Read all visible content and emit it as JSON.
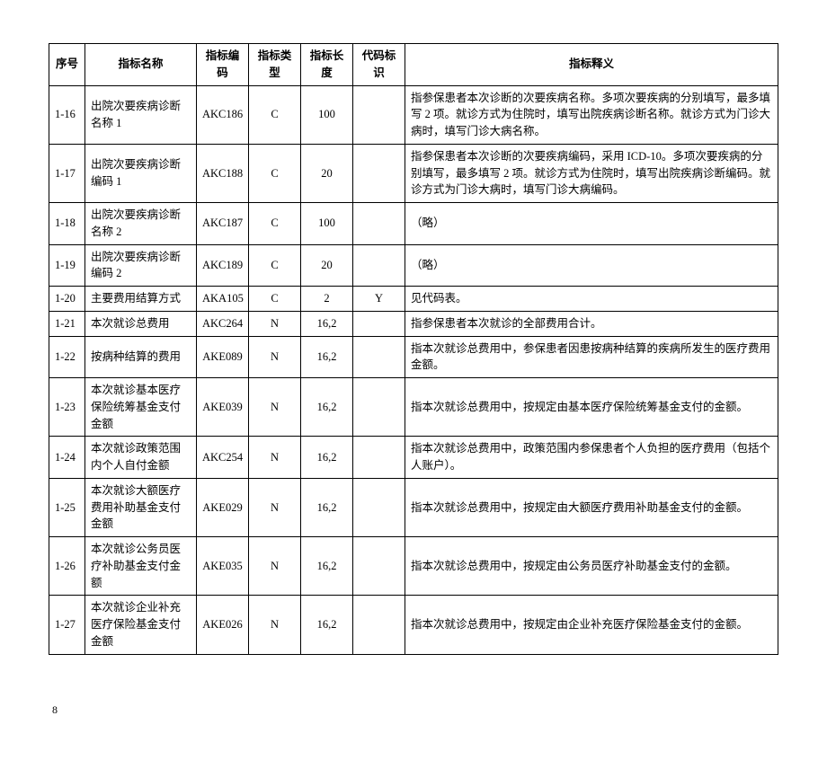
{
  "table": {
    "columns": [
      "序号",
      "指标名称",
      "指标编码",
      "指标类型",
      "指标长度",
      "代码标识",
      "指标释义"
    ],
    "rows": [
      {
        "seq": "1-16",
        "name": "出院次要疾病诊断名称 1",
        "code": "AKC186",
        "type": "C",
        "len": "100",
        "flag": "",
        "desc": "指参保患者本次诊断的次要疾病名称。多项次要疾病的分别填写，最多填写 2 项。就诊方式为住院时，填写出院疾病诊断名称。就诊方式为门诊大病时，填写门诊大病名称。"
      },
      {
        "seq": "1-17",
        "name": "出院次要疾病诊断编码 1",
        "code": "AKC188",
        "type": "C",
        "len": "20",
        "flag": "",
        "desc": "指参保患者本次诊断的次要疾病编码，采用 ICD-10。多项次要疾病的分别填写，最多填写 2 项。就诊方式为住院时，填写出院疾病诊断编码。就诊方式为门诊大病时，填写门诊大病编码。"
      },
      {
        "seq": "1-18",
        "name": "出院次要疾病诊断名称 2",
        "code": "AKC187",
        "type": "C",
        "len": "100",
        "flag": "",
        "desc": "（略）"
      },
      {
        "seq": "1-19",
        "name": "出院次要疾病诊断编码 2",
        "code": "AKC189",
        "type": "C",
        "len": "20",
        "flag": "",
        "desc": "（略）"
      },
      {
        "seq": "1-20",
        "name": "主要费用结算方式",
        "code": "AKA105",
        "type": "C",
        "len": "2",
        "flag": "Y",
        "desc": "见代码表。"
      },
      {
        "seq": "1-21",
        "name": "本次就诊总费用",
        "code": "AKC264",
        "type": "N",
        "len": "16,2",
        "flag": "",
        "desc": "指参保患者本次就诊的全部费用合计。"
      },
      {
        "seq": "1-22",
        "name": "按病种结算的费用",
        "code": "AKE089",
        "type": "N",
        "len": "16,2",
        "flag": "",
        "desc": "指本次就诊总费用中，参保患者因患按病种结算的疾病所发生的医疗费用金额。"
      },
      {
        "seq": "1-23",
        "name": "本次就诊基本医疗保险统筹基金支付金额",
        "code": "AKE039",
        "type": "N",
        "len": "16,2",
        "flag": "",
        "desc": "指本次就诊总费用中，按规定由基本医疗保险统筹基金支付的金额。"
      },
      {
        "seq": "1-24",
        "name": "本次就诊政策范围内个人自付金额",
        "code": "AKC254",
        "type": "N",
        "len": "16,2",
        "flag": "",
        "desc": "指本次就诊总费用中，政策范围内参保患者个人负担的医疗费用（包括个人账户）。"
      },
      {
        "seq": "1-25",
        "name": "本次就诊大额医疗费用补助基金支付金额",
        "code": "AKE029",
        "type": "N",
        "len": "16,2",
        "flag": "",
        "desc": "指本次就诊总费用中，按规定由大额医疗费用补助基金支付的金额。"
      },
      {
        "seq": "1-26",
        "name": "本次就诊公务员医疗补助基金支付金额",
        "code": "AKE035",
        "type": "N",
        "len": "16,2",
        "flag": "",
        "desc": "指本次就诊总费用中，按规定由公务员医疗补助基金支付的金额。"
      },
      {
        "seq": "1-27",
        "name": "本次就诊企业补充医疗保险基金支付金额",
        "code": "AKE026",
        "type": "N",
        "len": "16,2",
        "flag": "",
        "desc": "指本次就诊总费用中，按规定由企业补充医疗保险基金支付的金额。"
      }
    ]
  },
  "page_number": "8"
}
